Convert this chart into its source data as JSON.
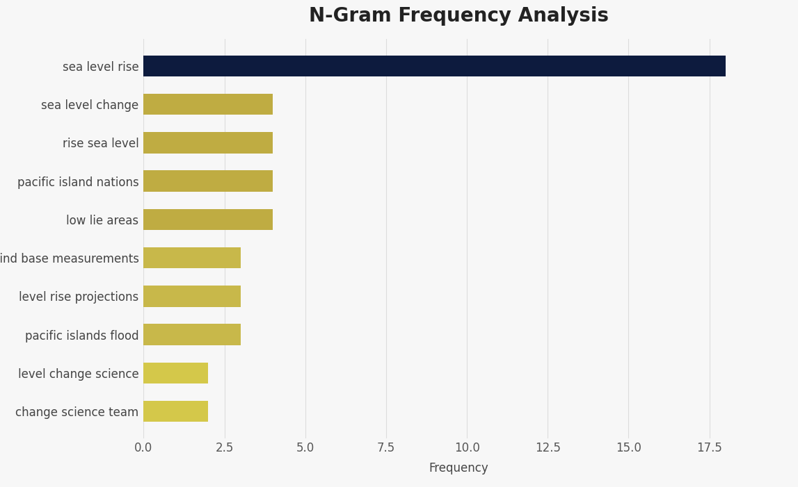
{
  "title": "N-Gram Frequency Analysis",
  "xlabel": "Frequency",
  "categories": [
    "change science team",
    "level change science",
    "pacific islands flood",
    "level rise projections",
    "grind base measurements",
    "low lie areas",
    "pacific island nations",
    "rise sea level",
    "sea level change",
    "sea level rise"
  ],
  "values": [
    2.0,
    2.0,
    3.0,
    3.0,
    3.0,
    4.0,
    4.0,
    4.0,
    4.0,
    18.0
  ],
  "bar_colors": [
    "#d4c84a",
    "#d4c84a",
    "#c8b84a",
    "#c8b84a",
    "#c8b84a",
    "#bfac42",
    "#bfac42",
    "#bfac42",
    "#bfac42",
    "#0d1b3e"
  ],
  "background_color": "#f7f7f7",
  "title_fontsize": 20,
  "label_fontsize": 12,
  "tick_fontsize": 12,
  "xlim": [
    0,
    19.5
  ],
  "xticks": [
    0.0,
    2.5,
    5.0,
    7.5,
    10.0,
    12.5,
    15.0,
    17.5
  ],
  "bar_height": 0.55,
  "figsize": [
    11.47,
    7.01
  ],
  "dpi": 100
}
